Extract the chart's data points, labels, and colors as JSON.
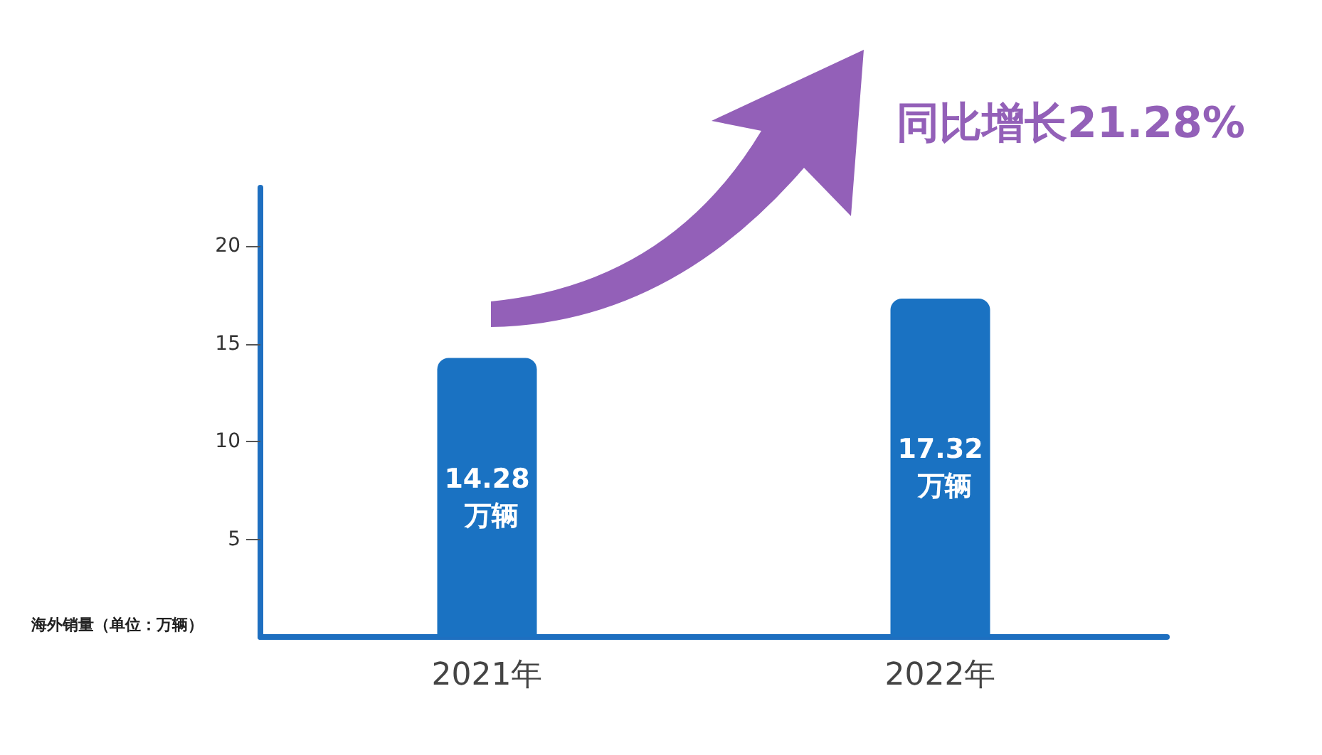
{
  "chart_data": {
    "type": "bar",
    "categories": [
      "2021年",
      "2022年"
    ],
    "values": [
      14.28,
      17.32
    ],
    "value_labels": [
      "14.28 万辆",
      "17.32 万辆"
    ],
    "color": "#1a72c2",
    "ylabel": "海外销量（单位：万辆）",
    "ylim": [
      0,
      23
    ],
    "yticks": [
      5,
      10,
      15,
      20
    ],
    "annotations": [
      "同比增长21.28%"
    ],
    "grid": false
  }
}
